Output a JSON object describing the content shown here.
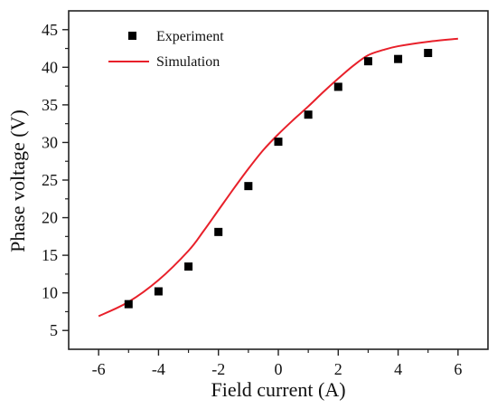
{
  "chart_data": {
    "type": "scatter",
    "xlabel": "Field current (A)",
    "ylabel": "Phase voltage (V)",
    "xlim": [
      -7,
      7
    ],
    "ylim": [
      2.5,
      47.5
    ],
    "xticks": [
      -6,
      -4,
      -2,
      0,
      2,
      4,
      6
    ],
    "yticks": [
      5,
      10,
      15,
      20,
      25,
      30,
      35,
      40,
      45
    ],
    "legend_position": "top-left",
    "grid": false,
    "series": [
      {
        "name": "Experiment",
        "kind": "scatter",
        "marker": "square",
        "color": "#000000",
        "x": [
          -5,
          -4,
          -3,
          -2,
          -1,
          0,
          1,
          2,
          3,
          4,
          5
        ],
        "y": [
          8.5,
          10.2,
          13.5,
          18.1,
          24.2,
          30.1,
          33.7,
          37.4,
          40.8,
          41.1,
          41.9
        ]
      },
      {
        "name": "Simulation",
        "kind": "line",
        "color": "#e8202a",
        "x": [
          -6,
          -5,
          -4,
          -3,
          -2.5,
          -2,
          -1.5,
          -1,
          -0.5,
          0,
          0.5,
          1,
          1.5,
          2,
          2.5,
          3,
          3.5,
          4,
          5,
          6
        ],
        "y": [
          6.9,
          8.8,
          11.7,
          15.6,
          18.2,
          21.0,
          23.8,
          26.5,
          29.0,
          31.1,
          33.0,
          34.8,
          36.7,
          38.5,
          40.2,
          41.6,
          42.3,
          42.8,
          43.4,
          43.8
        ]
      }
    ]
  }
}
